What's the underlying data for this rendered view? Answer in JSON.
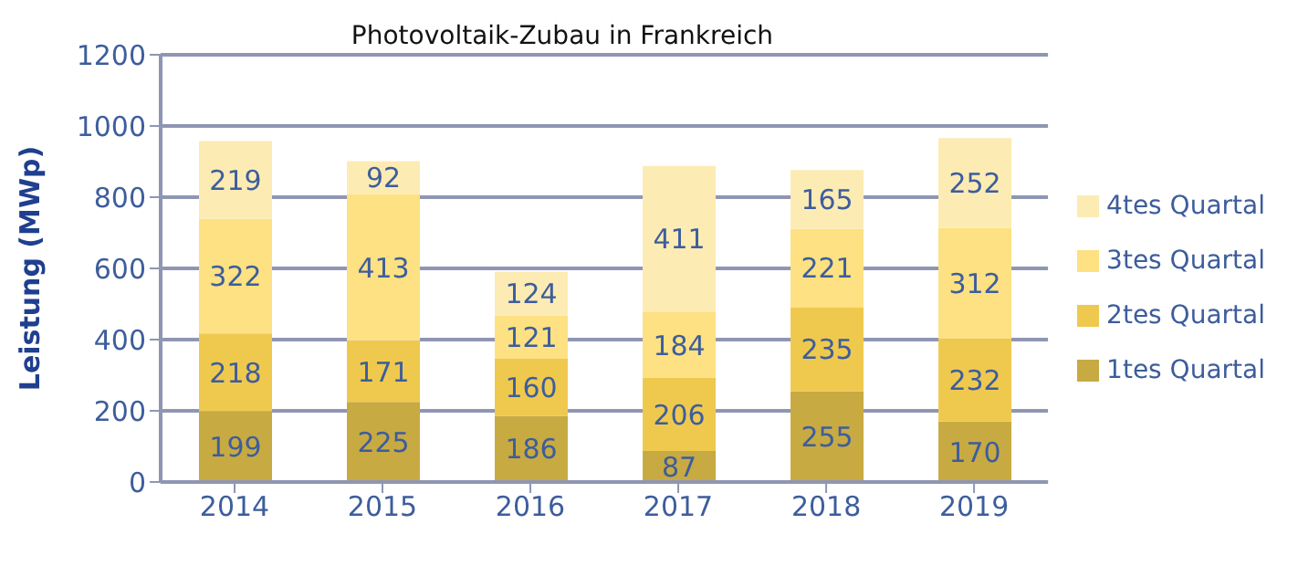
{
  "chart_data": {
    "type": "bar",
    "title": "Photovoltaik-Zubau in Frankreich",
    "ylabel": "Leistung (MWp)",
    "categories": [
      "2014",
      "2015",
      "2016",
      "2017",
      "2018",
      "2019"
    ],
    "stacked": true,
    "series": [
      {
        "name": "1tes Quartal",
        "color": "#c8aa42",
        "values": [
          199,
          225,
          186,
          87,
          255,
          170
        ]
      },
      {
        "name": "2tes Quartal",
        "color": "#efc94e",
        "values": [
          218,
          171,
          160,
          206,
          235,
          232
        ]
      },
      {
        "name": "3tes Quartal",
        "color": "#fde182",
        "values": [
          322,
          413,
          121,
          184,
          221,
          312
        ]
      },
      {
        "name": "4tes Quartal",
        "color": "#fdebb4",
        "values": [
          219,
          92,
          124,
          411,
          165,
          252
        ]
      }
    ],
    "ylim": [
      0,
      1200
    ],
    "yticks": [
      0,
      200,
      400,
      600,
      800,
      1000,
      1200
    ],
    "grid": "y",
    "legend": "right",
    "data_labels": true
  }
}
